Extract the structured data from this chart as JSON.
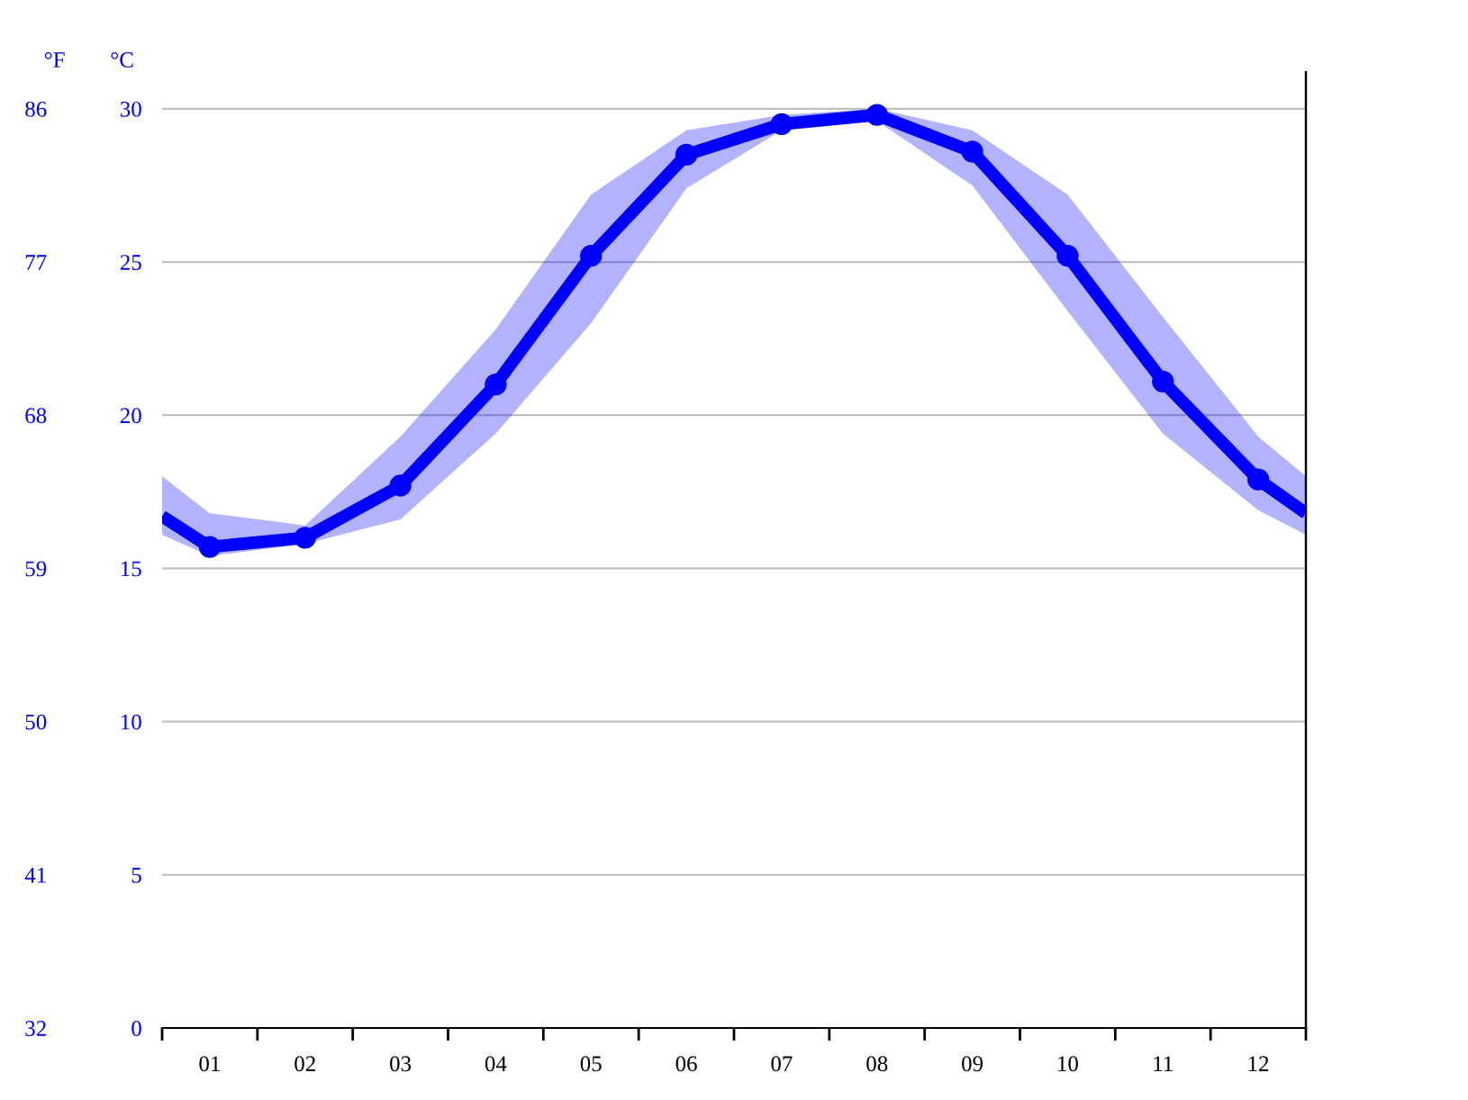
{
  "chart_data": {
    "type": "line",
    "ylabel": "°C",
    "y2label": "°F",
    "x": [
      0.5,
      1,
      2,
      3,
      4,
      5,
      6,
      7,
      8,
      9,
      10,
      11,
      12,
      12.5
    ],
    "series": [
      {
        "color": "#0000ff",
        "values": [
          16.7,
          15.7,
          16.0,
          17.7,
          21.0,
          25.2,
          28.5,
          29.5,
          29.8,
          28.6,
          25.2,
          21.1,
          17.9,
          16.8
        ],
        "upper": [
          18.0,
          16.8,
          16.4,
          19.3,
          22.8,
          27.2,
          29.3,
          29.8,
          30.0,
          29.3,
          27.2,
          23.2,
          19.3,
          18.0
        ],
        "lower": [
          16.1,
          15.4,
          15.8,
          16.6,
          19.4,
          23.0,
          27.4,
          29.3,
          29.6,
          27.5,
          23.4,
          19.4,
          16.9,
          16.1
        ]
      }
    ],
    "xlim": [
      0.5,
      12.5
    ],
    "xticks": [
      {
        "value": 0.5,
        "label": null
      },
      {
        "value": 1,
        "label": "01"
      },
      {
        "value": 1.5,
        "label": null
      },
      {
        "value": 2,
        "label": "02"
      },
      {
        "value": 2.5,
        "label": null
      },
      {
        "value": 3,
        "label": "03"
      },
      {
        "value": 3.5,
        "label": null
      },
      {
        "value": 4,
        "label": "04"
      },
      {
        "value": 4.5,
        "label": null
      },
      {
        "value": 5,
        "label": "05"
      },
      {
        "value": 5.5,
        "label": null
      },
      {
        "value": 6,
        "label": "06"
      },
      {
        "value": 6.5,
        "label": null
      },
      {
        "value": 7,
        "label": "07"
      },
      {
        "value": 7.5,
        "label": null
      },
      {
        "value": 8,
        "label": "08"
      },
      {
        "value": 8.5,
        "label": null
      },
      {
        "value": 9,
        "label": "09"
      },
      {
        "value": 9.5,
        "label": null
      },
      {
        "value": 10,
        "label": "10"
      },
      {
        "value": 10.5,
        "label": null
      },
      {
        "value": 11,
        "label": "11"
      },
      {
        "value": 11.5,
        "label": null
      },
      {
        "value": 12,
        "label": "12"
      },
      {
        "value": 12.5,
        "label": null
      }
    ],
    "ylim": [
      0,
      31.2
    ],
    "yticks": [
      0,
      5,
      10,
      15,
      20,
      25,
      30
    ],
    "y2lim": [
      32,
      88.16
    ],
    "y2ticks": [
      32,
      41,
      50,
      59,
      68,
      77,
      86
    ],
    "grid": "y",
    "legend": false,
    "marker": "circle",
    "line_style": "solid"
  }
}
